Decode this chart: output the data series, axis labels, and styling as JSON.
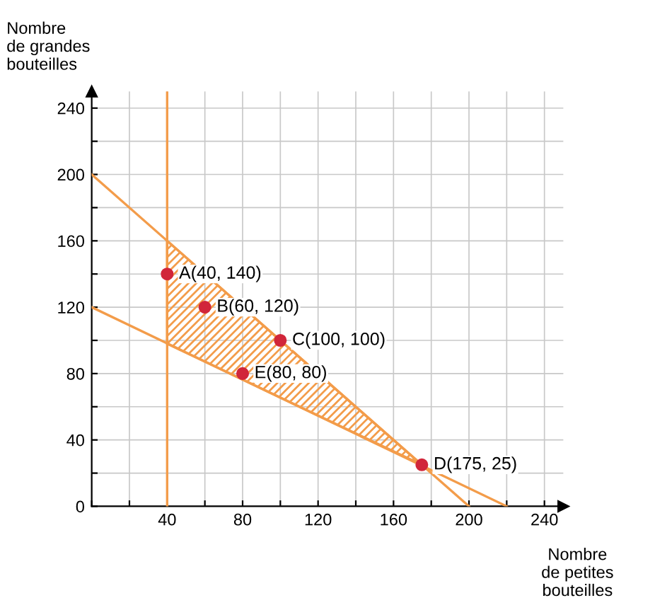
{
  "chart_data": {
    "type": "scatter",
    "xlabel": "Nombre\nde petites\nbouteilles",
    "ylabel": "Nombre\nde grandes\nbouteilles",
    "xlim": [
      0,
      250
    ],
    "ylim": [
      0,
      250
    ],
    "xticks": [
      {
        "value": 0,
        "label": null
      },
      {
        "value": 20,
        "label": null
      },
      40,
      {
        "value": 60,
        "label": null
      },
      80,
      {
        "value": 100,
        "label": null
      },
      120,
      {
        "value": 140,
        "label": null
      },
      160,
      {
        "value": 180,
        "label": null
      },
      200,
      {
        "value": 220,
        "label": null
      },
      240
    ],
    "yticks": [
      0,
      {
        "value": 20,
        "label": null
      },
      40,
      {
        "value": 60,
        "label": null
      },
      80,
      {
        "value": 100,
        "label": null
      },
      120,
      {
        "value": 140,
        "label": null
      },
      160,
      {
        "value": 180,
        "label": null
      },
      200,
      {
        "value": 220,
        "label": null
      },
      240
    ],
    "grid": true,
    "series": [
      {
        "type": "line",
        "color": "#f39c4a",
        "x": [
          40,
          40
        ],
        "values": [
          0,
          250
        ]
      },
      {
        "type": "line",
        "color": "#f39c4a",
        "x": [
          0,
          200
        ],
        "values": [
          200,
          0
        ]
      },
      {
        "type": "line",
        "color": "#f39c4a",
        "x": [
          0,
          220
        ],
        "values": [
          120,
          0
        ]
      },
      {
        "type": "area",
        "color": "#f39c4a",
        "x": [
          40,
          40,
          175
        ],
        "values": [
          98,
          160,
          25
        ]
      },
      {
        "color": "#d1263a",
        "marker": "circle",
        "x": [
          40,
          60,
          100,
          175,
          80
        ],
        "values": [
          140,
          120,
          100,
          25,
          80
        ]
      }
    ],
    "annotations": [
      {
        "text": "A(40, 140)",
        "x": 40,
        "y": 140
      },
      {
        "text": "B(60, 120)",
        "x": 60,
        "y": 120
      },
      {
        "text": "C(100, 100)",
        "x": 100,
        "y": 100
      },
      {
        "text": "D(175, 25)",
        "x": 175,
        "y": 25
      },
      {
        "text": "E(80, 80)",
        "x": 80,
        "y": 80
      }
    ]
  }
}
